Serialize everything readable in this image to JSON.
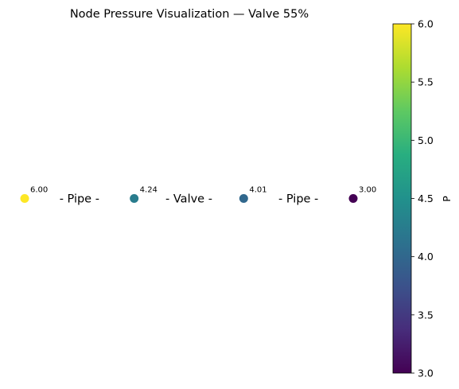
{
  "chart_data": {
    "type": "scatter",
    "title": "Node Pressure Visualization — Valve 55%",
    "nodes": [
      {
        "x": 0,
        "y": 0,
        "value": 6.0,
        "label": "6.00"
      },
      {
        "x": 1,
        "y": 0,
        "value": 4.24,
        "label": "4.24"
      },
      {
        "x": 2,
        "y": 0,
        "value": 4.01,
        "label": "4.01"
      },
      {
        "x": 3,
        "y": 0,
        "value": 3.0,
        "label": "3.00"
      }
    ],
    "edges": [
      {
        "from": 0,
        "to": 1,
        "label": "- Pipe -"
      },
      {
        "from": 1,
        "to": 2,
        "label": "- Valve -"
      },
      {
        "from": 2,
        "to": 3,
        "label": "- Pipe -"
      }
    ],
    "xlim": [
      -0.1,
      3.2
    ],
    "ylim": [
      -1.5,
      1.5
    ],
    "axes_visible": false,
    "colorbar": {
      "label": "P",
      "colormap": "viridis",
      "range": [
        3.0,
        6.0
      ],
      "ticks": [
        "3.0",
        "3.5",
        "4.0",
        "4.5",
        "5.0",
        "5.5",
        "6.0"
      ],
      "tick_values": [
        3.0,
        3.5,
        4.0,
        4.5,
        5.0,
        5.5,
        6.0
      ],
      "placement": "right"
    }
  }
}
